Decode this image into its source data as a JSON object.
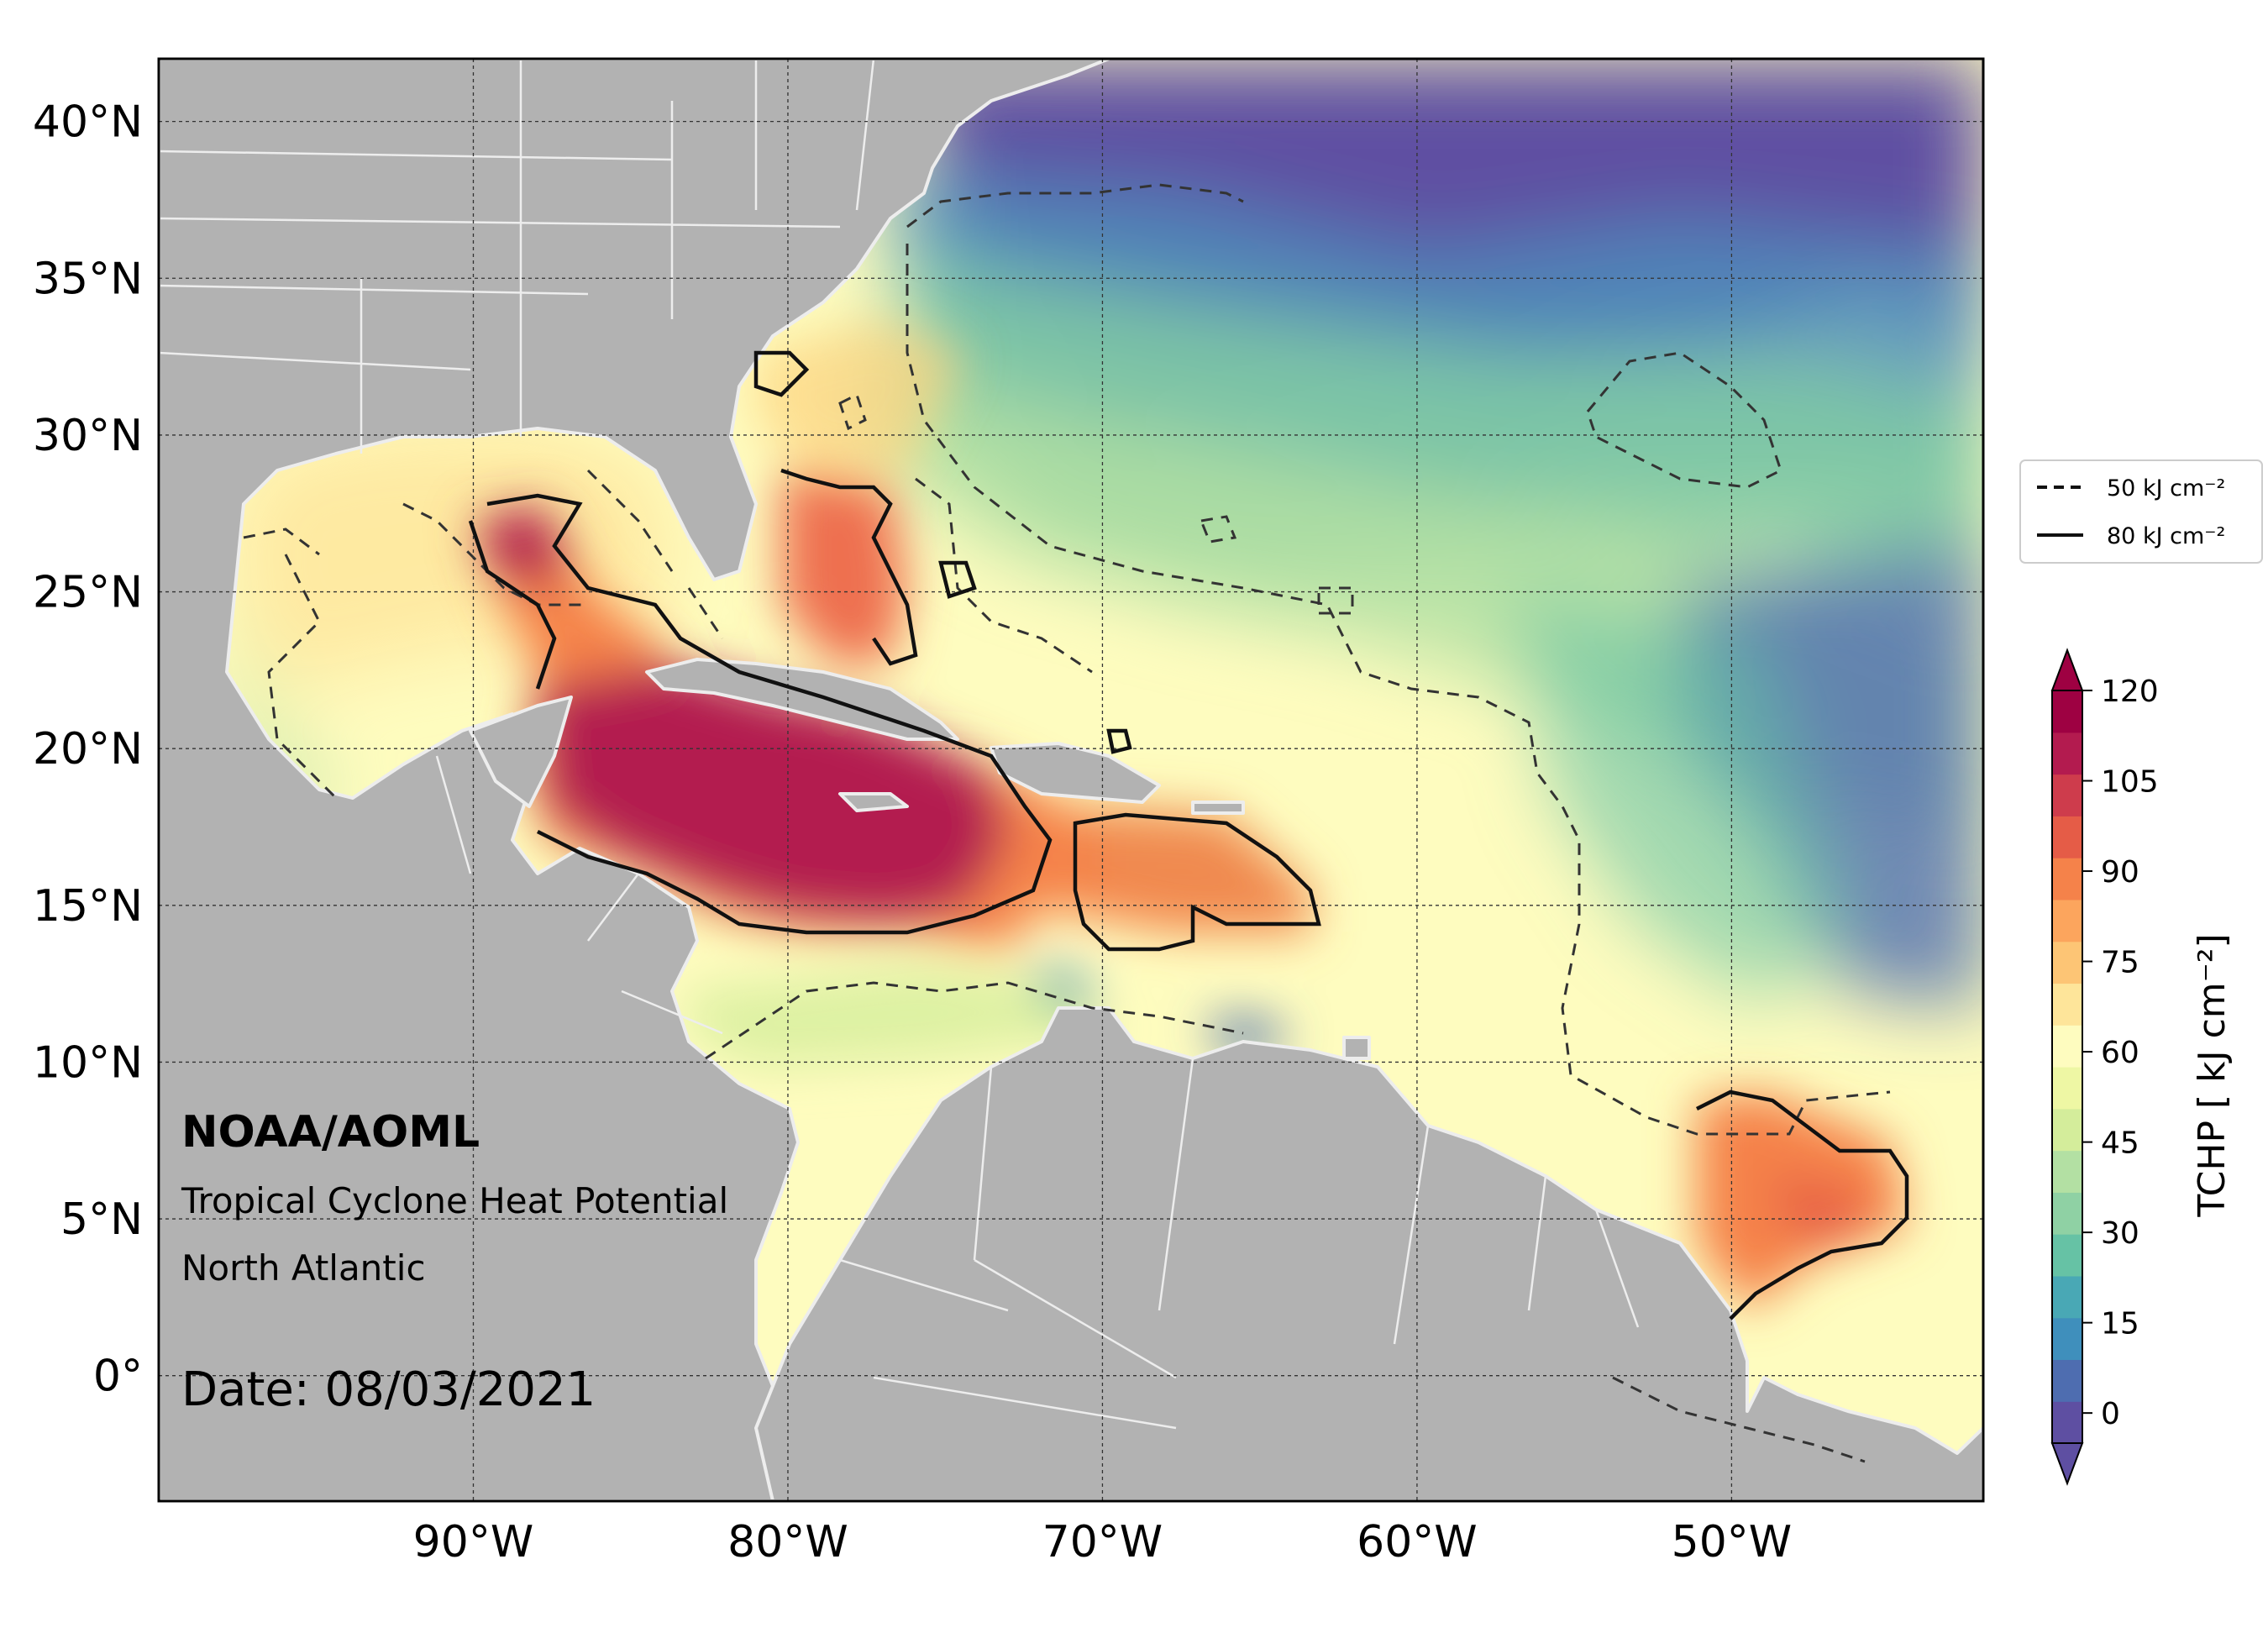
{
  "annotations": {
    "organization": "NOAA/AOML",
    "product": "Tropical Cyclone Heat Potential",
    "region": "North Atlantic",
    "date": "Date: 08/03/2021"
  },
  "axes": {
    "lat_labels": [
      "40°N",
      "35°N",
      "30°N",
      "25°N",
      "20°N",
      "15°N",
      "10°N",
      "5°N",
      "0°"
    ],
    "lat_values": [
      40,
      35,
      30,
      25,
      20,
      15,
      10,
      5,
      0
    ],
    "lon_labels": [
      "90°W",
      "80°W",
      "70°W",
      "60°W",
      "50°W"
    ],
    "lon_values": [
      -90,
      -80,
      -70,
      -60,
      -50
    ],
    "lon_range": [
      -100,
      -42
    ],
    "lat_range": [
      -4,
      42
    ]
  },
  "legend": {
    "items": [
      {
        "style": "dashed",
        "label": "50 kJ cm⁻²"
      },
      {
        "style": "solid",
        "label": "80 kJ cm⁻²"
      }
    ]
  },
  "colorbar": {
    "label": "TCHP [ kJ cm⁻²]",
    "ticks": [
      0,
      15,
      30,
      45,
      60,
      75,
      90,
      105,
      120
    ],
    "tick_labels": [
      "0",
      "15",
      "30",
      "45",
      "60",
      "75",
      "90",
      "105",
      "120"
    ],
    "range": [
      -5,
      120
    ],
    "colors": [
      "#5e4fa2",
      "#4e6db0",
      "#3f8fbc",
      "#49a8b5",
      "#66c2a5",
      "#8fd1a4",
      "#b3e0a3",
      "#d4ed9b",
      "#eef7a4",
      "#fefcbf",
      "#fee59a",
      "#fdc575",
      "#fca55d",
      "#f5824a",
      "#e55c47",
      "#ce3c4c",
      "#b31b4f",
      "#9e0142"
    ]
  },
  "colors": {
    "land": "#b2b2b2",
    "coast": "#ededed",
    "frame": "#000000"
  }
}
